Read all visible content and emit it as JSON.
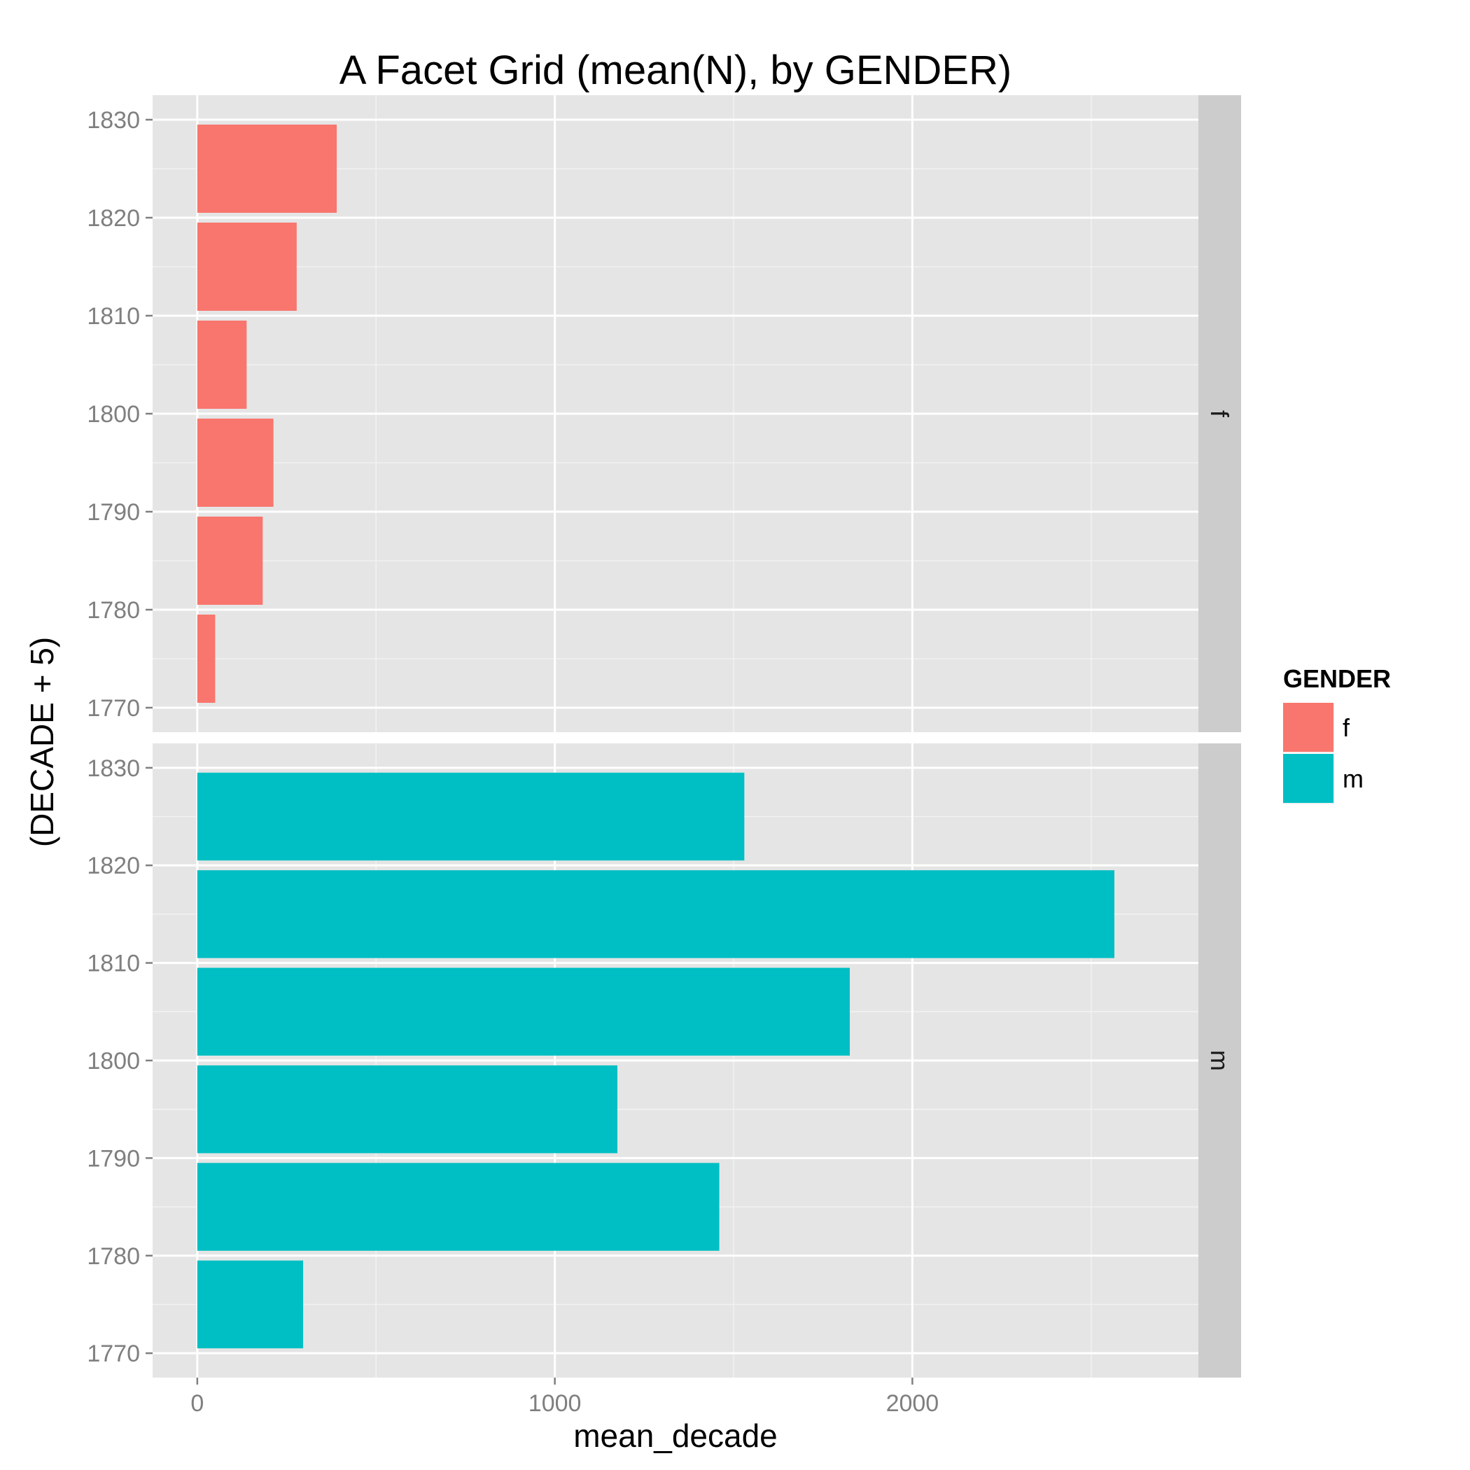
{
  "chart_data": {
    "type": "bar",
    "orientation": "horizontal",
    "title": "A Facet Grid (mean(N), by GENDER)",
    "xlabel": "mean_decade",
    "ylabel": "(DECADE + 5)",
    "xlim": [
      -125,
      2800
    ],
    "ylim": [
      1767.5,
      1832.5
    ],
    "x_ticks": [
      0,
      1000,
      2000
    ],
    "x_tick_labels": [
      "0",
      "1000",
      "2000"
    ],
    "y_ticks": [
      1770,
      1780,
      1790,
      1800,
      1810,
      1820,
      1830
    ],
    "y_tick_labels": [
      "1770",
      "1780",
      "1790",
      "1800",
      "1810",
      "1820",
      "1830"
    ],
    "categories": [
      1775,
      1785,
      1795,
      1805,
      1815,
      1825
    ],
    "grid": true,
    "facet_by": "GENDER",
    "legend": {
      "title": "GENDER",
      "placement": "right",
      "entries": [
        {
          "label": "f",
          "color": "#F8766D"
        },
        {
          "label": "m",
          "color": "#00BFC4"
        }
      ]
    },
    "series": [
      {
        "name": "f",
        "strip_label": "f",
        "color": "#F8766D",
        "values": [
          50,
          183,
          213,
          138,
          278,
          390
        ]
      },
      {
        "name": "m",
        "strip_label": "m",
        "color": "#00BFC4",
        "values": [
          296,
          1460,
          1175,
          1825,
          2565,
          1530
        ]
      }
    ]
  }
}
